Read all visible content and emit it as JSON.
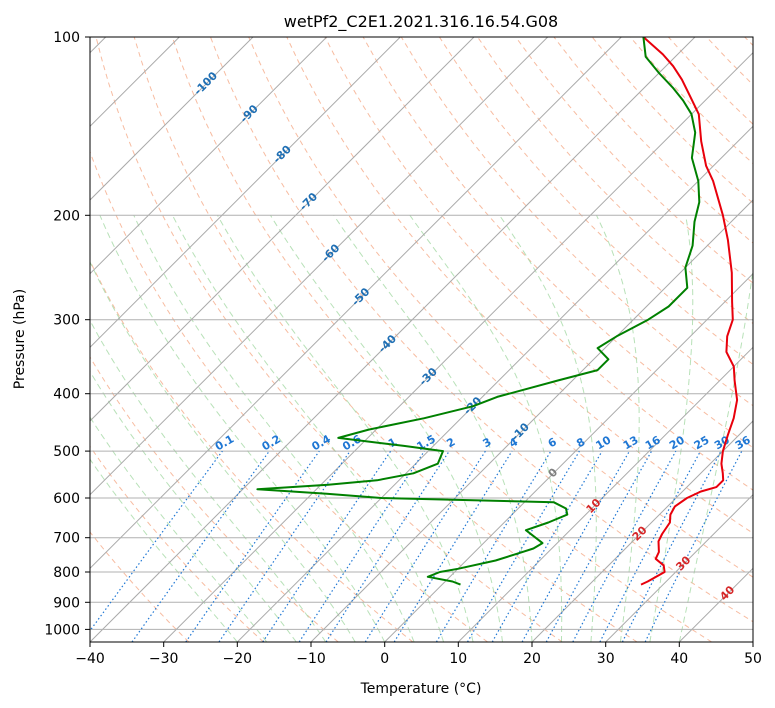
{
  "chart_data": {
    "type": "skew-t",
    "title": "wetPf2_C2E1.2021.316.16.54.G08",
    "xlabel": "Temperature (°C)",
    "ylabel": "Pressure (hPa)",
    "xlim": [
      -40,
      50
    ],
    "ylim": [
      1050,
      100
    ],
    "y_scale": "log",
    "x_ticks": [
      "−40",
      "−30",
      "−20",
      "−10",
      "0",
      "10",
      "20",
      "30",
      "40",
      "50"
    ],
    "y_ticks": [
      "100",
      "200",
      "300",
      "400",
      "500",
      "600",
      "700",
      "800",
      "900",
      "1000"
    ],
    "grid": true,
    "colors": {
      "temperature": "#e8000b",
      "dewpoint": "#008000",
      "dry_adiabats": "#f4a582",
      "moist_adiabats": "#a6d9a6",
      "mixing_ratio": "#1f77d4",
      "isotherm_labels_cold": "#1f6fb4",
      "isotherm_labels_warm": "#d62728"
    },
    "isotherm_labels": [
      {
        "text": "-100",
        "t": -100,
        "p": 120
      },
      {
        "text": "-90",
        "t": -90,
        "p": 135
      },
      {
        "text": "-80",
        "t": -80,
        "p": 158
      },
      {
        "text": "-70",
        "t": -70,
        "p": 190
      },
      {
        "text": "-60",
        "t": -60,
        "p": 232
      },
      {
        "text": "-50",
        "t": -50,
        "p": 275
      },
      {
        "text": "-40",
        "t": -40,
        "p": 330
      },
      {
        "text": "-30",
        "t": -30,
        "p": 375
      },
      {
        "text": "-20",
        "t": -20,
        "p": 420
      },
      {
        "text": "-10",
        "t": -10,
        "p": 465
      },
      {
        "text": "0",
        "t": 0,
        "p": 545
      },
      {
        "text": "10",
        "t": 10,
        "p": 620
      },
      {
        "text": "20",
        "t": 20,
        "p": 690
      },
      {
        "text": "30",
        "t": 30,
        "p": 775
      },
      {
        "text": "40",
        "t": 40,
        "p": 870
      }
    ],
    "mixing_ratio_labels": [
      "0.1",
      "0.2",
      "0.4",
      "0.6",
      "1",
      "1.5",
      "2",
      "3",
      "4",
      "6",
      "8",
      "10",
      "13",
      "16",
      "20",
      "25",
      "30",
      "36"
    ],
    "mixing_ratio_values": [
      0.1,
      0.2,
      0.4,
      0.6,
      1,
      1.5,
      2,
      3,
      4,
      6,
      8,
      10,
      13,
      16,
      20,
      25,
      30,
      36
    ],
    "series": [
      {
        "name": "temperature",
        "points": [
          [
            27,
            840
          ],
          [
            27.5,
            830
          ],
          [
            28.5,
            800
          ],
          [
            27.5,
            780
          ],
          [
            25.5,
            760
          ],
          [
            25,
            740
          ],
          [
            23.5,
            710
          ],
          [
            23,
            690
          ],
          [
            22.5,
            660
          ],
          [
            21.5,
            640
          ],
          [
            21,
            620
          ],
          [
            21.5,
            600
          ],
          [
            22.5,
            585
          ],
          [
            24,
            575
          ],
          [
            24,
            560
          ],
          [
            23,
            545
          ],
          [
            21.5,
            525
          ],
          [
            20,
            500
          ],
          [
            18.5,
            470
          ],
          [
            17,
            440
          ],
          [
            15,
            410
          ],
          [
            12,
            380
          ],
          [
            10,
            360
          ],
          [
            7,
            340
          ],
          [
            5,
            320
          ],
          [
            3.5,
            300
          ],
          [
            1,
            280
          ],
          [
            -3,
            250
          ],
          [
            -8,
            220
          ],
          [
            -12,
            200
          ],
          [
            -18,
            175
          ],
          [
            -21,
            165
          ],
          [
            -25,
            150
          ],
          [
            -29,
            135
          ],
          [
            -33,
            125
          ],
          [
            -36,
            118
          ],
          [
            -39,
            112
          ],
          [
            -42,
            107
          ],
          [
            -47,
            100
          ]
        ]
      },
      {
        "name": "dewpoint",
        "points": [
          [
            2.5,
            840
          ],
          [
            1,
            830
          ],
          [
            -3,
            815
          ],
          [
            -2,
            800
          ],
          [
            0,
            790
          ],
          [
            4,
            765
          ],
          [
            6,
            745
          ],
          [
            7.5,
            730
          ],
          [
            8,
            715
          ],
          [
            4,
            680
          ],
          [
            6,
            660
          ],
          [
            7.5,
            640
          ],
          [
            6.5,
            625
          ],
          [
            4,
            610
          ],
          [
            -20,
            600
          ],
          [
            -28,
            590
          ],
          [
            -38,
            580
          ],
          [
            -29,
            570
          ],
          [
            -23,
            560
          ],
          [
            -19,
            545
          ],
          [
            -17,
            525
          ],
          [
            -18,
            500
          ],
          [
            -24,
            490
          ],
          [
            -34,
            475
          ],
          [
            -31,
            460
          ],
          [
            -25,
            440
          ],
          [
            -20,
            420
          ],
          [
            -18,
            405
          ],
          [
            -12,
            380
          ],
          [
            -8,
            365
          ],
          [
            -8,
            350
          ],
          [
            -11,
            335
          ],
          [
            -10,
            320
          ],
          [
            -8,
            300
          ],
          [
            -7,
            285
          ],
          [
            -7,
            265
          ],
          [
            -10,
            245
          ],
          [
            -12,
            225
          ],
          [
            -15,
            205
          ],
          [
            -17,
            190
          ],
          [
            -20,
            175
          ],
          [
            -24,
            160
          ],
          [
            -27,
            145
          ],
          [
            -30,
            135
          ],
          [
            -33,
            128
          ],
          [
            -36,
            122
          ],
          [
            -40,
            115
          ],
          [
            -44,
            108
          ],
          [
            -47,
            100
          ]
        ]
      }
    ]
  }
}
